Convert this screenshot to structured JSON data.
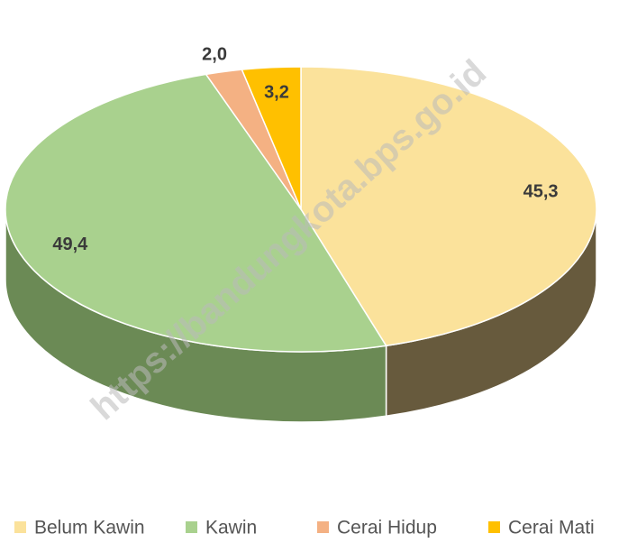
{
  "chart_data": {
    "type": "pie",
    "categories": [
      "Belum Kawin",
      "Kawin",
      "Cerai Hidup",
      "Cerai Mati"
    ],
    "values": [
      45.3,
      49.4,
      2.0,
      3.2
    ],
    "value_labels": [
      "45,3",
      "49,4",
      "2,0",
      "3,2"
    ],
    "colors": [
      "#fbe29b",
      "#a9d18e",
      "#f4b183",
      "#ffc000"
    ],
    "side_colors": [
      "#675a3d",
      "#6b8a55",
      "#b07a55",
      "#b08600"
    ],
    "watermark": "https://bandungkota.bps.go.id",
    "legend": "bottom"
  }
}
